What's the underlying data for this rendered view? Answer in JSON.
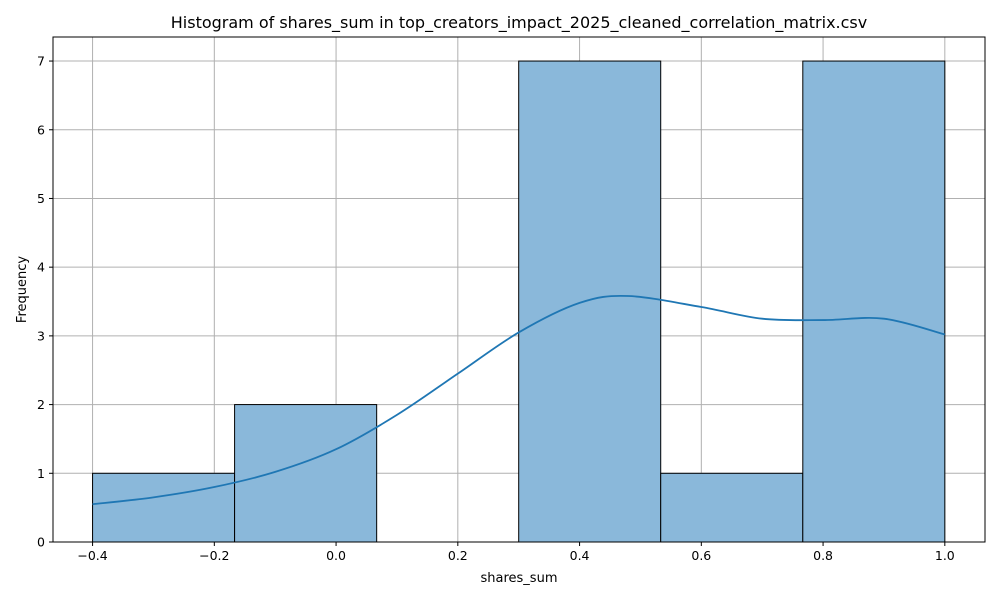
{
  "chart_data": {
    "type": "bar",
    "title": "Histogram of shares_sum in top_creators_impact_2025_cleaned_correlation_matrix.csv",
    "xlabel": "shares_sum",
    "ylabel": "Frequency",
    "xlim": [
      -0.465,
      1.066
    ],
    "ylim": [
      0,
      7.35
    ],
    "grid": true,
    "bins": [
      {
        "x0": -0.4,
        "x1": -0.1667,
        "count": 1
      },
      {
        "x0": -0.1667,
        "x1": 0.0667,
        "count": 2
      },
      {
        "x0": 0.0667,
        "x1": 0.3,
        "count": 0
      },
      {
        "x0": 0.3,
        "x1": 0.5333,
        "count": 7
      },
      {
        "x0": 0.5333,
        "x1": 0.7667,
        "count": 1
      },
      {
        "x0": 0.7667,
        "x1": 1.0,
        "count": 7
      }
    ],
    "kde": {
      "x": [
        -0.4,
        -0.3,
        -0.2,
        -0.1,
        0.0,
        0.1,
        0.2,
        0.3,
        0.4,
        0.48,
        0.6,
        0.7,
        0.8,
        0.9,
        1.0
      ],
      "y": [
        0.55,
        0.65,
        0.8,
        1.02,
        1.35,
        1.85,
        2.45,
        3.05,
        3.48,
        3.58,
        3.42,
        3.25,
        3.23,
        3.25,
        3.02
      ]
    },
    "xticks": [
      -0.4,
      -0.2,
      0.0,
      0.2,
      0.4,
      0.6,
      0.8,
      1.0
    ],
    "xtick_labels": [
      "−0.4",
      "−0.2",
      "0.0",
      "0.2",
      "0.4",
      "0.6",
      "0.8",
      "1.0"
    ],
    "yticks": [
      0,
      1,
      2,
      3,
      4,
      5,
      6,
      7
    ],
    "ytick_labels": [
      "0",
      "1",
      "2",
      "3",
      "4",
      "5",
      "6",
      "7"
    ],
    "colors": {
      "bar_fill": "#8ab8da",
      "bar_edge": "#000000",
      "kde_line": "#1f77b4",
      "grid": "#b0b0b0"
    }
  }
}
